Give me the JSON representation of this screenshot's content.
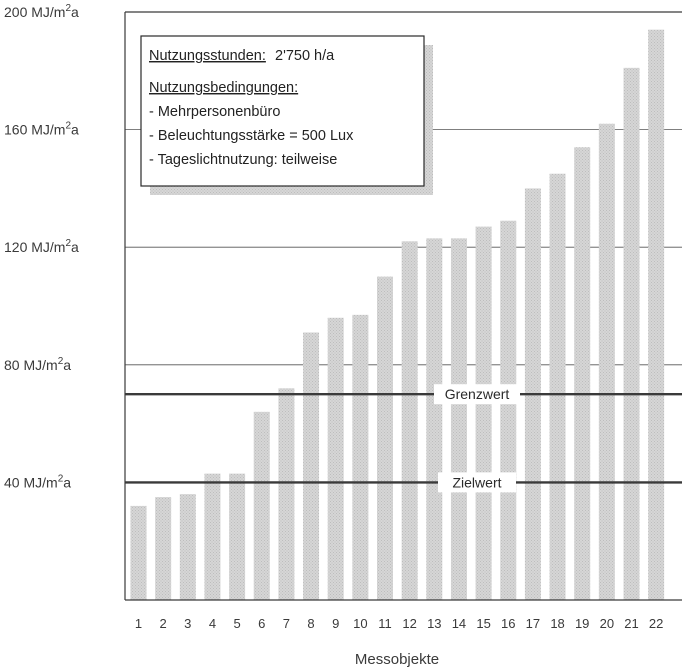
{
  "chart_data": {
    "type": "bar",
    "categories": [
      "1",
      "2",
      "3",
      "4",
      "5",
      "6",
      "7",
      "8",
      "9",
      "10",
      "11",
      "12",
      "13",
      "14",
      "15",
      "16",
      "17",
      "18",
      "19",
      "20",
      "21",
      "22"
    ],
    "values": [
      32,
      35,
      36,
      43,
      43,
      64,
      72,
      91,
      96,
      97,
      110,
      122,
      123,
      123,
      127,
      129,
      140,
      145,
      154,
      162,
      181,
      194
    ],
    "ylim": [
      0,
      200
    ],
    "yticks": [
      {
        "value": 40,
        "label": "40 MJ/m",
        "sup": "2",
        "suffix": "a"
      },
      {
        "value": 80,
        "label": "80 MJ/m",
        "sup": "2",
        "suffix": "a"
      },
      {
        "value": 120,
        "label": "120 MJ/m",
        "sup": "2",
        "suffix": "a"
      },
      {
        "value": 160,
        "label": "160 MJ/m",
        "sup": "2",
        "suffix": "a"
      },
      {
        "value": 200,
        "label": "200 MJ/m",
        "sup": "2",
        "suffix": "a"
      }
    ],
    "xlabel": "Messobjekte",
    "ylabel": "",
    "grid": true,
    "reference_lines": [
      {
        "label": "Grenzwert",
        "value": 70
      },
      {
        "label": "Zielwert",
        "value": 40
      }
    ],
    "info_box": {
      "hours_label": "Nutzungsstunden:",
      "hours_value": " 2'750 h/a",
      "conditions_title": "Nutzungsbedingungen:",
      "conditions": [
        "- Mehrpersonenbüro",
        "- Beleuchtungsstärke = 500 Lux",
        "- Tageslichtnutzung: teilweise"
      ]
    },
    "colors": {
      "bar": "#cfcfcf",
      "reference_line": "#3a3a3a",
      "grid": "#555555",
      "axis": "#3a3a3a"
    }
  }
}
